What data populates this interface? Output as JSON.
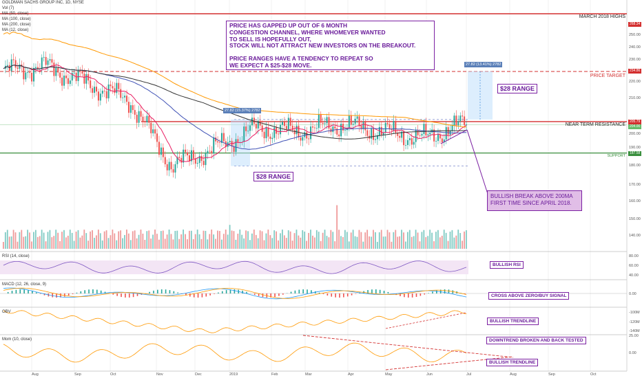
{
  "title": "GOLDMAN SACHS GROUP INC, 1D, NYSE",
  "legend": [
    "Vol (7)",
    "MA (50, close)",
    "MA (100, close)",
    "MA (200, close)",
    "MA (12, close)"
  ],
  "annotation_main": [
    "PRICE HAS GAPPED UP OUT OF 6 MONTH",
    "CONGESTION CHANNEL, WHERE WHOMEVER WANTED",
    "TO SELL IS HOPEFULLY OUT,",
    "STOCK WILL NOT ATTRACT NEW INVESTORS ON THE BREAKOUT.",
    "",
    "PRICE RANGES HAVE A TENDENCY TO REPEAT SO",
    "WE EXPECT A $25-$28 MOVE."
  ],
  "annotation_break": [
    "BULLISH BREAK ABOVE 200MA",
    "FIRST TIME SINCE APRIL 2018."
  ],
  "range_label": "$28 RANGE",
  "range_label_2": "$28 RANGE",
  "measure_box_left": "27.82 (15.37%) 2782",
  "measure_box_right": "27.82 (13.41%) 2782",
  "levels": {
    "march_high": {
      "label": "MARCH 2018 HIGHS",
      "value": "268.34",
      "color": "#d32f2f"
    },
    "target": {
      "label": "PRICE TARGET",
      "value": "234.86",
      "color": "#d32f2f"
    },
    "resistance": {
      "label": "NEAR TERM RESISTANCE",
      "value": "205.79",
      "color": "#d32f2f"
    },
    "support": {
      "label": "SUPPORT",
      "value": "187.58",
      "color": "#388e3c"
    },
    "last_price": {
      "value": "204.00",
      "color": "#66bb6a"
    }
  },
  "price_axis": [
    "250.00",
    "240.00",
    "230.00",
    "220.00",
    "210.00",
    "200.00",
    "190.00",
    "180.00",
    "170.00",
    "160.00",
    "150.00",
    "140.00"
  ],
  "panels": {
    "rsi": {
      "label": "RSI (14, close)",
      "note": "BULLISH RSI",
      "ticks": [
        "80.00",
        "60.00",
        "40.00"
      ]
    },
    "macd": {
      "label": "MACD (12, 26, close, 9)",
      "note": "CROSS ABOVE ZERO/BUY SIGNAL",
      "ticks": [
        "0.00"
      ]
    },
    "obv": {
      "label": "OBV",
      "note": "BULLISH TRENDLINE",
      "ticks": [
        "-100M",
        "-120M",
        "-140M"
      ]
    },
    "mom": {
      "label": "Mom (10, close)",
      "note_top": "DOWNTREND BROKEN AND BACK TESTED",
      "note_bottom": "BULLISH TRENDLINE",
      "ticks": [
        "25.00",
        "0.00"
      ]
    }
  },
  "time_axis": [
    "Aug",
    "Sep",
    "Oct",
    "Nov",
    "Dec",
    "2019",
    "Feb",
    "Mar",
    "Apr",
    "May",
    "Jun",
    "Jul",
    "Aug",
    "Sep",
    "Oct"
  ],
  "chart_data": {
    "type": "line",
    "description_series": "daily close (approx.)",
    "x": [
      "Aug",
      "Sep",
      "Oct",
      "Nov",
      "Dec",
      "2019",
      "Feb",
      "Mar",
      "Apr",
      "May",
      "Jun",
      "Jul"
    ],
    "series": [
      {
        "name": "",
        "values": [
          235,
          238,
          228,
          218,
          180,
          190,
          202,
          200,
          204,
          200,
          196,
          205
        ]
      }
    ],
    "ylim": [
      135,
      275
    ],
    "levels": {
      "march_2018_high": 268.34,
      "price_target": 234.86,
      "resistance": 205.79,
      "support": 187.58
    },
    "colors": {
      "up": "#26a69a",
      "down": "#ef5350",
      "ma50": "#3f51b5",
      "ma100": "#333333",
      "ma200": "#ff9800",
      "ma12": "#e91e63"
    }
  }
}
